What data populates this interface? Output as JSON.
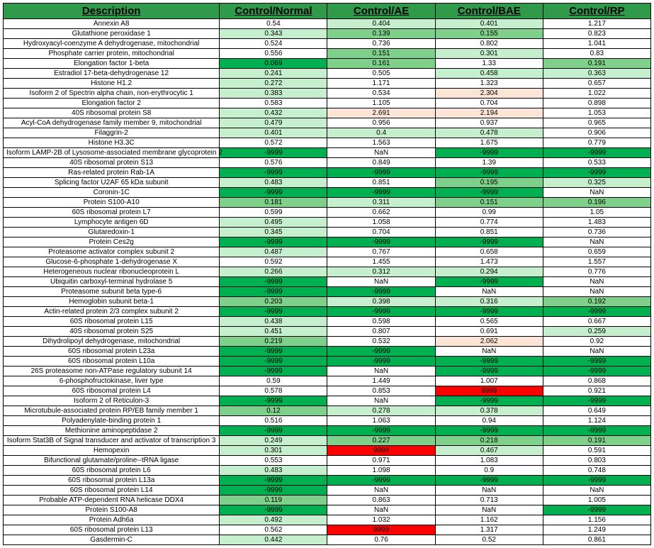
{
  "headers": [
    "Description",
    "Control/Normal",
    "Control/AE",
    "Control/BAE",
    "Control/RP"
  ],
  "colors": {
    "deepGreen": "#00b050",
    "medGreen": "#7ed08a",
    "lightGreen": "#c6efce",
    "paleGreen": "#e2f0d9",
    "white": "#ffffff",
    "palePink": "#fce4d6",
    "red": "#ff0000"
  },
  "rows": [
    {
      "d": "Annexin A8",
      "v": [
        "0.54",
        "0.404",
        "0.401",
        "1.217"
      ],
      "c": [
        "white",
        "lightGreen",
        "lightGreen",
        "white"
      ]
    },
    {
      "d": "Glutathione peroxidase 1",
      "v": [
        "0.343",
        "0.139",
        "0.155",
        "0.823"
      ],
      "c": [
        "lightGreen",
        "medGreen",
        "medGreen",
        "white"
      ]
    },
    {
      "d": "Hydroxyacyl-coenzyme A dehydrogenase, mitochondrial",
      "v": [
        "0.524",
        "0.736",
        "0.802",
        "1.041"
      ],
      "c": [
        "white",
        "white",
        "white",
        "white"
      ]
    },
    {
      "d": "Phosphate carrier protein, mitochondrial",
      "v": [
        "0.556",
        "0.151",
        "0.301",
        "0.83"
      ],
      "c": [
        "white",
        "medGreen",
        "lightGreen",
        "white"
      ]
    },
    {
      "d": "Elongation factor 1-beta",
      "v": [
        "0.069",
        "0.161",
        "1.33",
        "0.191"
      ],
      "c": [
        "deepGreen",
        "medGreen",
        "white",
        "medGreen"
      ]
    },
    {
      "d": "Estradiol 17-beta-dehydrogenase 12",
      "v": [
        "0.241",
        "0.505",
        "0.458",
        "0.363"
      ],
      "c": [
        "lightGreen",
        "white",
        "lightGreen",
        "lightGreen"
      ]
    },
    {
      "d": "Histone H1.2",
      "v": [
        "0.272",
        "1.171",
        "1.323",
        "0.657"
      ],
      "c": [
        "lightGreen",
        "white",
        "white",
        "white"
      ]
    },
    {
      "d": "Isoform 2 of Spectrin alpha chain, non-erythrocytic 1",
      "v": [
        "0.383",
        "0.534",
        "2.304",
        "1.022"
      ],
      "c": [
        "lightGreen",
        "white",
        "palePink",
        "white"
      ]
    },
    {
      "d": "Elongation factor 2",
      "v": [
        "0.583",
        "1.105",
        "0.704",
        "0.898"
      ],
      "c": [
        "white",
        "white",
        "white",
        "white"
      ]
    },
    {
      "d": "40S ribosomal protein S8",
      "v": [
        "0.432",
        "2.691",
        "2.194",
        "1.053"
      ],
      "c": [
        "lightGreen",
        "palePink",
        "palePink",
        "white"
      ]
    },
    {
      "d": "Acyl-CoA dehydrogenase family member 9, mitochondrial",
      "v": [
        "0.479",
        "0.956",
        "0.937",
        "0.965"
      ],
      "c": [
        "lightGreen",
        "white",
        "white",
        "white"
      ]
    },
    {
      "d": "Filaggrin-2",
      "v": [
        "0.401",
        "0.4",
        "0.478",
        "0.906"
      ],
      "c": [
        "lightGreen",
        "lightGreen",
        "lightGreen",
        "white"
      ]
    },
    {
      "d": "Histone H3.3C",
      "v": [
        "0.572",
        "1.563",
        "1.675",
        "0.779"
      ],
      "c": [
        "white",
        "white",
        "white",
        "white"
      ]
    },
    {
      "d": "Isoform LAMP-2B of Lysosome-associated membrane glycoprotein 2",
      "v": [
        "-9999",
        "NaN",
        "-9999",
        "-9999"
      ],
      "c": [
        "deepGreen",
        "white",
        "deepGreen",
        "deepGreen"
      ]
    },
    {
      "d": "40S ribosomal protein S13",
      "v": [
        "0.576",
        "0.849",
        "1.39",
        "0.533"
      ],
      "c": [
        "white",
        "white",
        "white",
        "white"
      ]
    },
    {
      "d": "Ras-related protein Rab-1A",
      "v": [
        "-9999",
        "-9999",
        "-9999",
        "-9999"
      ],
      "c": [
        "deepGreen",
        "deepGreen",
        "deepGreen",
        "deepGreen"
      ]
    },
    {
      "d": "Splicing factor U2AF 65 kDa subunit",
      "v": [
        "0.483",
        "0.851",
        "0.195",
        "0.325"
      ],
      "c": [
        "lightGreen",
        "white",
        "medGreen",
        "lightGreen"
      ]
    },
    {
      "d": "Coronin-1C",
      "v": [
        "-9999",
        "-9999",
        "-9999",
        "NaN"
      ],
      "c": [
        "deepGreen",
        "deepGreen",
        "deepGreen",
        "white"
      ]
    },
    {
      "d": "Protein S100-A10",
      "v": [
        "0.181",
        "0.311",
        "0.151",
        "0.196"
      ],
      "c": [
        "medGreen",
        "lightGreen",
        "medGreen",
        "medGreen"
      ]
    },
    {
      "d": "60S ribosomal protein L7",
      "v": [
        "0.599",
        "0.662",
        "0.99",
        "1.05"
      ],
      "c": [
        "white",
        "white",
        "white",
        "white"
      ]
    },
    {
      "d": "Lymphocyte antigen 6D",
      "v": [
        "0.495",
        "1.058",
        "0.774",
        "1.483"
      ],
      "c": [
        "lightGreen",
        "white",
        "white",
        "white"
      ]
    },
    {
      "d": "Glutaredoxin-1",
      "v": [
        "0.345",
        "0.704",
        "0.851",
        "0.736"
      ],
      "c": [
        "lightGreen",
        "white",
        "white",
        "white"
      ]
    },
    {
      "d": "Protein Ces2g",
      "v": [
        "-9999",
        "-9999",
        "-9999",
        "NaN"
      ],
      "c": [
        "deepGreen",
        "deepGreen",
        "deepGreen",
        "white"
      ]
    },
    {
      "d": "Proteasome activator complex subunit 2",
      "v": [
        "0.487",
        "0.767",
        "0.658",
        "0.659"
      ],
      "c": [
        "lightGreen",
        "white",
        "white",
        "white"
      ]
    },
    {
      "d": "Glucose-6-phosphate 1-dehydrogenase X",
      "v": [
        "0.592",
        "1.455",
        "1.473",
        "1.557"
      ],
      "c": [
        "white",
        "white",
        "white",
        "white"
      ]
    },
    {
      "d": "Heterogeneous nuclear ribonucleoprotein L",
      "v": [
        "0.266",
        "0.312",
        "0.294",
        "0.776"
      ],
      "c": [
        "lightGreen",
        "lightGreen",
        "lightGreen",
        "white"
      ]
    },
    {
      "d": "Ubiquitin carboxyl-terminal hydrolase 5",
      "v": [
        "-9999",
        "NaN",
        "-9999",
        "NaN"
      ],
      "c": [
        "deepGreen",
        "white",
        "deepGreen",
        "white"
      ]
    },
    {
      "d": "Proteasome subunit beta type-6",
      "v": [
        "-9999",
        "-9999",
        "NaN",
        "NaN"
      ],
      "c": [
        "deepGreen",
        "deepGreen",
        "white",
        "white"
      ]
    },
    {
      "d": "Hemoglobin subunit beta-1",
      "v": [
        "0.203",
        "0.398",
        "0.316",
        "0.192"
      ],
      "c": [
        "medGreen",
        "lightGreen",
        "lightGreen",
        "medGreen"
      ]
    },
    {
      "d": "Actin-related protein 2/3 complex subunit 2",
      "v": [
        "-9999",
        "-9999",
        "-9999",
        "-9999"
      ],
      "c": [
        "deepGreen",
        "deepGreen",
        "deepGreen",
        "deepGreen"
      ]
    },
    {
      "d": "60S ribosomal protein L15",
      "v": [
        "0.438",
        "0.598",
        "0.565",
        "0.667"
      ],
      "c": [
        "lightGreen",
        "white",
        "white",
        "white"
      ]
    },
    {
      "d": "40S ribosomal protein S25",
      "v": [
        "0.451",
        "0.807",
        "0.691",
        "0.259"
      ],
      "c": [
        "lightGreen",
        "white",
        "white",
        "lightGreen"
      ]
    },
    {
      "d": "Dihydrolipoyl dehydrogenase, mitochondrial",
      "v": [
        "0.219",
        "0.532",
        "2.062",
        "0.92"
      ],
      "c": [
        "medGreen",
        "white",
        "palePink",
        "white"
      ]
    },
    {
      "d": "60S ribosomal protein L23a",
      "v": [
        "-9999",
        "-9999",
        "NaN",
        "NaN"
      ],
      "c": [
        "deepGreen",
        "deepGreen",
        "white",
        "white"
      ]
    },
    {
      "d": "60S ribosomal protein L10a",
      "v": [
        "-9999",
        "-9999",
        "-9999",
        "-9999"
      ],
      "c": [
        "deepGreen",
        "deepGreen",
        "deepGreen",
        "deepGreen"
      ]
    },
    {
      "d": "26S proteasome non-ATPase regulatory subunit 14",
      "v": [
        "-9999",
        "NaN",
        "-9999",
        "-9999"
      ],
      "c": [
        "deepGreen",
        "white",
        "deepGreen",
        "deepGreen"
      ]
    },
    {
      "d": "6-phosphofructokinase, liver type",
      "v": [
        "0.59",
        "1.449",
        "1.007",
        "0.868"
      ],
      "c": [
        "white",
        "white",
        "white",
        "white"
      ]
    },
    {
      "d": "60S ribosomal protein L4",
      "v": [
        "0.578",
        "0.853",
        "9999",
        "0.921"
      ],
      "c": [
        "white",
        "white",
        "red",
        "white"
      ]
    },
    {
      "d": "Isoform 2 of Reticulon-3",
      "v": [
        "-9999",
        "NaN",
        "-9999",
        "-9999"
      ],
      "c": [
        "deepGreen",
        "white",
        "deepGreen",
        "deepGreen"
      ]
    },
    {
      "d": "Microtubule-associated protein RP/EB family member 1",
      "v": [
        "0.12",
        "0.278",
        "0.378",
        "0.649"
      ],
      "c": [
        "medGreen",
        "lightGreen",
        "lightGreen",
        "white"
      ]
    },
    {
      "d": "Polyadenylate-binding protein 1",
      "v": [
        "0.516",
        "1.063",
        "0.94",
        "1.124"
      ],
      "c": [
        "white",
        "white",
        "white",
        "white"
      ]
    },
    {
      "d": "Methionine aminopeptidase 2",
      "v": [
        "-9999",
        "-9999",
        "-9999",
        "-9999"
      ],
      "c": [
        "deepGreen",
        "deepGreen",
        "deepGreen",
        "deepGreen"
      ]
    },
    {
      "d": "Isoform Stat3B of Signal transducer and activator of transcription 3",
      "v": [
        "0.249",
        "0.227",
        "0.218",
        "0.191"
      ],
      "c": [
        "lightGreen",
        "medGreen",
        "medGreen",
        "medGreen"
      ]
    },
    {
      "d": "Hemopexin",
      "v": [
        "0.301",
        "9999",
        "0.467",
        "0.591"
      ],
      "c": [
        "lightGreen",
        "red",
        "lightGreen",
        "white"
      ]
    },
    {
      "d": "Bifunctional glutamate/proline--tRNA ligase",
      "v": [
        "0.553",
        "0.971",
        "1.083",
        "0.803"
      ],
      "c": [
        "white",
        "white",
        "white",
        "white"
      ]
    },
    {
      "d": "60S ribosomal protein L6",
      "v": [
        "0.483",
        "1.098",
        "0.9",
        "0.748"
      ],
      "c": [
        "lightGreen",
        "white",
        "white",
        "white"
      ]
    },
    {
      "d": "60S ribosomal protein L13a",
      "v": [
        "-9999",
        "-9999",
        "-9999",
        "-9999"
      ],
      "c": [
        "deepGreen",
        "deepGreen",
        "deepGreen",
        "deepGreen"
      ]
    },
    {
      "d": "60S ribosomal protein L14",
      "v": [
        "-9999",
        "NaN",
        "NaN",
        "NaN"
      ],
      "c": [
        "deepGreen",
        "white",
        "white",
        "white"
      ]
    },
    {
      "d": "Probable ATP-dependent RNA helicase DDX4",
      "v": [
        "0.119",
        "0.863",
        "0.713",
        "1.005"
      ],
      "c": [
        "medGreen",
        "white",
        "white",
        "white"
      ]
    },
    {
      "d": "Protein S100-A8",
      "v": [
        "-9999",
        "NaN",
        "NaN",
        "-9999"
      ],
      "c": [
        "deepGreen",
        "white",
        "white",
        "deepGreen"
      ]
    },
    {
      "d": "Protein Adh6a",
      "v": [
        "0.492",
        "1.032",
        "1.162",
        "1.156"
      ],
      "c": [
        "lightGreen",
        "white",
        "white",
        "white"
      ]
    },
    {
      "d": "60S ribosomal protein L13",
      "v": [
        "0.562",
        "9999",
        "1.317",
        "1.249"
      ],
      "c": [
        "white",
        "red",
        "white",
        "white"
      ]
    },
    {
      "d": "Gasdermin-C",
      "v": [
        "0.442",
        "0.76",
        "0.52",
        "0.861"
      ],
      "c": [
        "lightGreen",
        "white",
        "white",
        "white"
      ]
    }
  ]
}
